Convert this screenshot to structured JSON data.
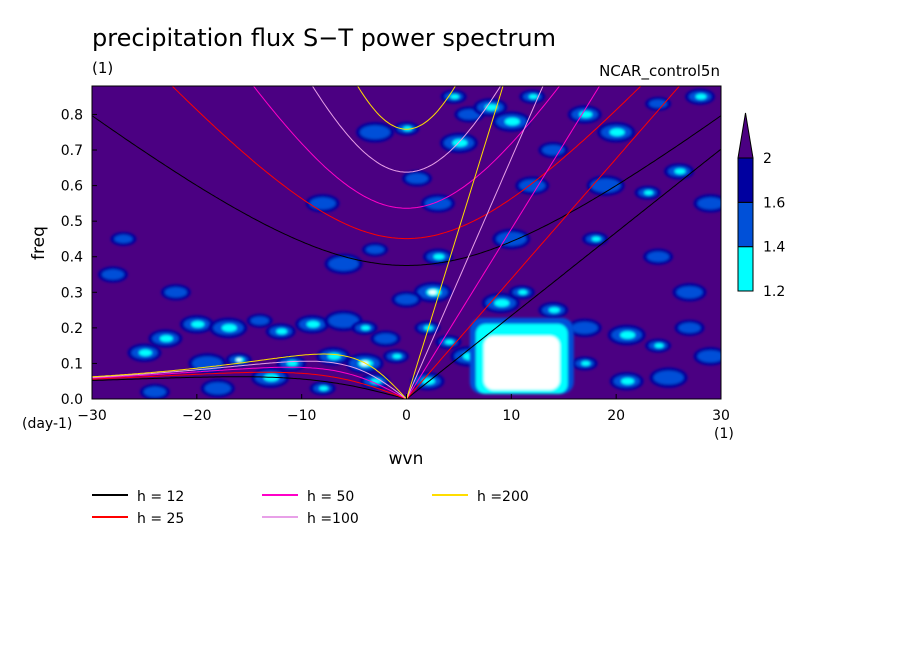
{
  "chart_data": {
    "type": "heatmap",
    "title": "precipitation flux S−T power spectrum",
    "units_left": "(1)",
    "run_label": "NCAR_control5n",
    "ylabel": "freq",
    "y_units": "(day-1)",
    "xlabel": "wvn",
    "x_units": "(1)",
    "xlim": [
      -30,
      30
    ],
    "ylim": [
      0,
      0.88
    ],
    "x_ticks": [
      "−30",
      "−20",
      "−10",
      "0",
      "10",
      "20",
      "30"
    ],
    "y_ticks": [
      "0.0",
      "0.1",
      "0.2",
      "0.3",
      "0.4",
      "0.5",
      "0.6",
      "0.7",
      "0.8"
    ],
    "x_tick_values": [
      -30,
      -20,
      -10,
      0,
      10,
      20,
      30
    ],
    "y_tick_values": [
      0,
      0.1,
      0.2,
      0.3,
      0.4,
      0.5,
      0.6,
      0.7,
      0.8
    ],
    "colorbar": {
      "levels": [
        "1.2",
        "1.4",
        "1.6",
        "2"
      ],
      "colors": [
        "#ffffff",
        "#00ffff",
        "#0050d8",
        "#0000a0",
        "#4b0082"
      ]
    },
    "background_color": "#4b0082",
    "series": [
      {
        "name": "h = 12",
        "color": "#000000",
        "h": 12
      },
      {
        "name": "h = 25",
        "color": "#ff0000",
        "h": 25
      },
      {
        "name": "h = 50",
        "color": "#ff00c8",
        "h": 50
      },
      {
        "name": "h =100",
        "color": "#e8a0e8",
        "h": 100
      },
      {
        "name": "h =200",
        "color": "#ffdd00",
        "h": 200
      }
    ],
    "noise_blobs": [
      [
        -27,
        0.45,
        1
      ],
      [
        -22,
        0.3,
        1
      ],
      [
        -20,
        0.21,
        2
      ],
      [
        -17,
        0.2,
        2
      ],
      [
        -14,
        0.22,
        1
      ],
      [
        -12,
        0.19,
        2
      ],
      [
        -9,
        0.21,
        2
      ],
      [
        -6,
        0.22,
        1
      ],
      [
        -4,
        0.2,
        2
      ],
      [
        -2,
        0.17,
        1
      ],
      [
        -25,
        0.13,
        2
      ],
      [
        -19,
        0.1,
        1
      ],
      [
        -16,
        0.11,
        3
      ],
      [
        -11,
        0.1,
        2
      ],
      [
        -7,
        0.12,
        2
      ],
      [
        -4,
        0.1,
        3
      ],
      [
        -1,
        0.12,
        2
      ],
      [
        -28,
        0.35,
        1
      ],
      [
        -23,
        0.17,
        2
      ],
      [
        -13,
        0.06,
        2
      ],
      [
        -8,
        0.03,
        2
      ],
      [
        -3,
        0.05,
        2
      ],
      [
        2,
        0.05,
        2
      ],
      [
        2.5,
        0.3,
        3
      ],
      [
        2,
        0.2,
        2
      ],
      [
        3,
        0.4,
        2
      ],
      [
        3,
        0.55,
        1
      ],
      [
        5,
        0.72,
        2
      ],
      [
        4.5,
        0.85,
        2
      ],
      [
        6,
        0.8,
        1
      ],
      [
        8,
        0.82,
        2
      ],
      [
        10,
        0.78,
        2
      ],
      [
        12,
        0.85,
        2
      ],
      [
        14,
        0.7,
        1
      ],
      [
        17,
        0.8,
        2
      ],
      [
        20,
        0.75,
        2
      ],
      [
        24,
        0.83,
        1
      ],
      [
        28,
        0.85,
        2
      ],
      [
        12,
        0.6,
        1
      ],
      [
        19,
        0.6,
        1
      ],
      [
        23,
        0.58,
        2
      ],
      [
        26,
        0.64,
        2
      ],
      [
        29,
        0.55,
        1
      ],
      [
        10,
        0.45,
        1
      ],
      [
        18,
        0.45,
        2
      ],
      [
        24,
        0.4,
        1
      ],
      [
        27,
        0.3,
        1
      ],
      [
        9,
        0.27,
        2
      ],
      [
        11,
        0.3,
        2
      ],
      [
        14,
        0.25,
        2
      ],
      [
        17,
        0.2,
        1
      ],
      [
        21,
        0.18,
        2
      ],
      [
        24,
        0.15,
        2
      ],
      [
        27,
        0.2,
        1
      ],
      [
        29,
        0.12,
        1
      ],
      [
        -6,
        0.38,
        1
      ],
      [
        -3,
        0.42,
        1
      ],
      [
        0,
        0.28,
        1
      ],
      [
        -8,
        0.55,
        1
      ],
      [
        -3,
        0.75,
        1
      ],
      [
        0,
        0.76,
        2
      ],
      [
        1,
        0.62,
        1
      ],
      [
        21,
        0.05,
        2
      ],
      [
        25,
        0.06,
        1
      ],
      [
        17,
        0.1,
        2
      ],
      [
        -24,
        0.02,
        1
      ],
      [
        -18,
        0.03,
        1
      ],
      [
        6,
        0.12,
        2
      ],
      [
        4,
        0.16,
        2
      ]
    ],
    "hot_region": {
      "x": [
        7,
        15
      ],
      "y": [
        0.02,
        0.2
      ]
    }
  }
}
